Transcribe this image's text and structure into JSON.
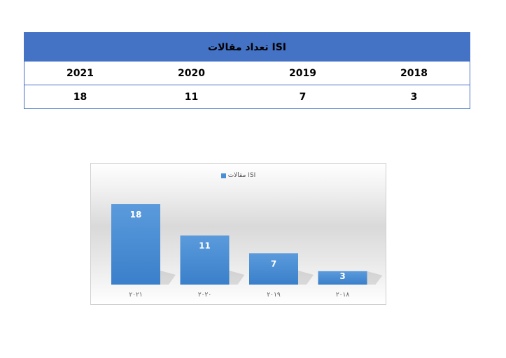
{
  "table": {
    "title": "تعداد مقالات ISI",
    "years": [
      "2021",
      "2020",
      "2019",
      "2018"
    ],
    "counts": [
      "18",
      "11",
      "7",
      "3"
    ]
  },
  "chart_data": {
    "type": "bar",
    "categories": [
      "۲۰۲۱",
      "۲۰۲۰",
      "۲۰۱۹",
      "۲۰۱۸"
    ],
    "series": [
      {
        "name": "مقالات ISI",
        "values": [
          18,
          11,
          7,
          3
        ],
        "color": "#4a8fd6"
      }
    ],
    "data_labels": [
      "18",
      "11",
      "7",
      "3"
    ],
    "legend_position": "top",
    "gridlines": false,
    "title": "",
    "xlabel": "",
    "ylabel": ""
  }
}
